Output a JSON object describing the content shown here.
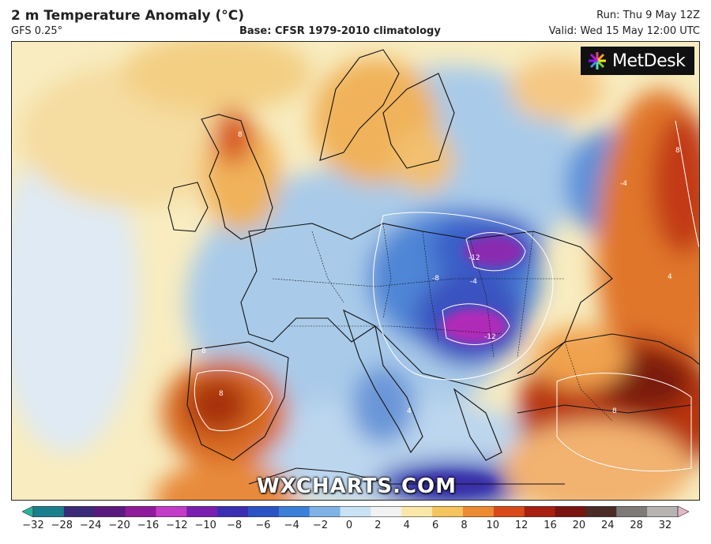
{
  "header": {
    "title": "2 m Temperature Anomaly (°C)",
    "model": "GFS 0.25°",
    "base": "Base: CFSR 1979-2010 climatology",
    "run": "Run: Thu 9 May 12Z",
    "valid": "Valid: Wed 15 May 12:00 UTC"
  },
  "brand": {
    "name": "MetDesk",
    "icon": "metdesk-burst-icon"
  },
  "watermark": "WXCHARTS.COM",
  "contour_labels": [
    "-12",
    "-12",
    "-8",
    "-4",
    "-4",
    "8",
    "8",
    "8",
    "8",
    "4",
    "8",
    "4"
  ],
  "colorbar": {
    "ticks": [
      "−32",
      "−28",
      "−24",
      "−20",
      "−16",
      "−12",
      "−10",
      "−8",
      "−6",
      "−4",
      "−2",
      "0",
      "2",
      "4",
      "6",
      "8",
      "10",
      "12",
      "16",
      "20",
      "24",
      "28",
      "32"
    ],
    "colors": [
      "#25b59a",
      "#1a7f8c",
      "#3d2a7a",
      "#5b1a7e",
      "#8f1b9a",
      "#c23cc6",
      "#7a1fb0",
      "#3a2fb0",
      "#2a53c4",
      "#3b7fd6",
      "#7fb3e6",
      "#c9e2f3",
      "#f2f2f2",
      "#f8e7a8",
      "#f5c45e",
      "#ee8a32",
      "#d84a1a",
      "#a8200f",
      "#7a1410",
      "#4a2b26",
      "#7d7a78",
      "#b6b3b1",
      "#e6b6c8"
    ]
  }
}
